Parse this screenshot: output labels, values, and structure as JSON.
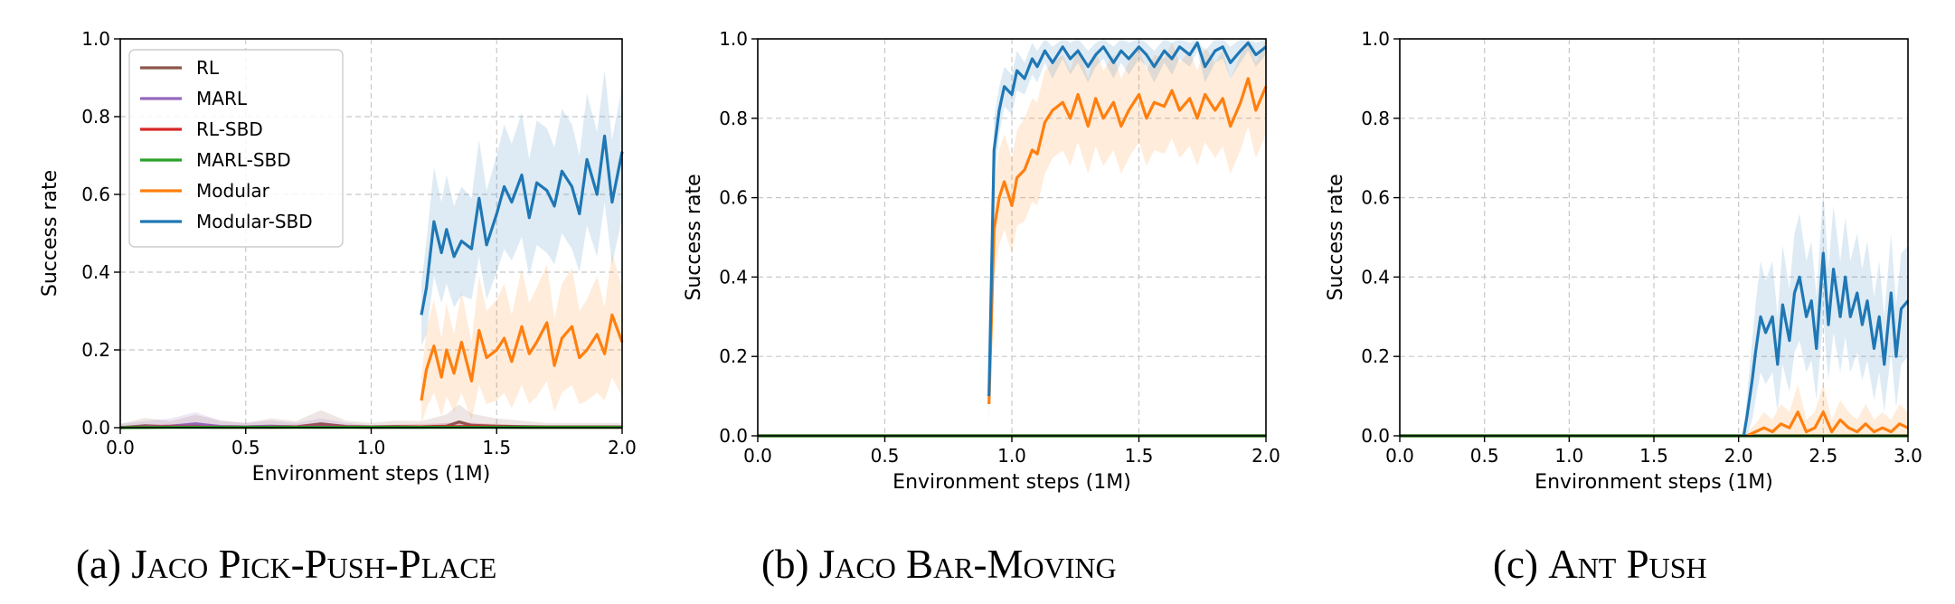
{
  "captions": [
    {
      "prefix": "(a) ",
      "title": "Jaco Pick-Push-Place"
    },
    {
      "prefix": "(b) ",
      "title": "Jaco Bar-Moving"
    },
    {
      "prefix": "(c) ",
      "title": "Ant Push"
    }
  ],
  "colors": {
    "RL": "#8c564b",
    "MARL": "#9467bd",
    "RL-SBD": "#d62728",
    "MARL-SBD": "#2ca02c",
    "Modular": "#ff7f0e",
    "Modular-SBD": "#1f77b4",
    "grid": "#c8c8c8"
  },
  "chart_data": [
    {
      "type": "line",
      "xlabel": "Environment steps (1M)",
      "ylabel": "Success rate",
      "xlim": [
        0,
        2.0
      ],
      "ylim": [
        0,
        1.0
      ],
      "xticks": [
        "0.0",
        "0.5",
        "1.0",
        "1.5",
        "2.0"
      ],
      "yticks": [
        "0.0",
        "0.2",
        "0.4",
        "0.6",
        "0.8",
        "1.0"
      ],
      "grid": true,
      "legend": {
        "position": "upper-left",
        "entries": [
          "RL",
          "MARL",
          "RL-SBD",
          "MARL-SBD",
          "Modular",
          "Modular-SBD"
        ]
      },
      "series": [
        {
          "name": "RL",
          "x": [
            0,
            0.1,
            0.2,
            0.3,
            0.4,
            0.5,
            0.6,
            0.7,
            0.8,
            0.9,
            1.0,
            1.1,
            1.2,
            1.3,
            1.35,
            1.4,
            1.5,
            1.6,
            1.7,
            1.8,
            1.9,
            2.0
          ],
          "y": [
            0,
            0.005,
            0.002,
            0.008,
            0.003,
            0.002,
            0.004,
            0.002,
            0.01,
            0.003,
            0.002,
            0.003,
            0.002,
            0.004,
            0.015,
            0.006,
            0.004,
            0.003,
            0.002,
            0.002,
            0.002,
            0.002
          ],
          "band": [
            0.01,
            0.02,
            0.015,
            0.025,
            0.015,
            0.01,
            0.02,
            0.015,
            0.035,
            0.015,
            0.01,
            0.015,
            0.015,
            0.03,
            0.045,
            0.03,
            0.02,
            0.015,
            0.01,
            0.01,
            0.01,
            0.01
          ]
        },
        {
          "name": "MARL",
          "x": [
            0,
            0.1,
            0.2,
            0.3,
            0.4,
            0.5,
            0.6,
            0.7,
            0.8,
            0.9,
            1.0,
            1.1,
            1.2,
            1.3,
            1.4,
            1.5,
            1.6,
            1.7,
            1.8,
            1.9,
            2.0
          ],
          "y": [
            0,
            0.002,
            0.004,
            0.01,
            0.003,
            0.002,
            0.003,
            0.002,
            0.004,
            0.002,
            0.001,
            0.001,
            0.001,
            0.002,
            0.002,
            0.001,
            0.001,
            0.001,
            0.001,
            0.001,
            0.001
          ],
          "band": [
            0.01,
            0.015,
            0.02,
            0.03,
            0.015,
            0.01,
            0.015,
            0.01,
            0.02,
            0.01,
            0.005,
            0.005,
            0.005,
            0.01,
            0.01,
            0.005,
            0.005,
            0.005,
            0.005,
            0.005,
            0.005
          ]
        },
        {
          "name": "RL-SBD",
          "x": [
            0,
            0.2,
            0.4,
            0.6,
            0.8,
            1.0,
            1.2,
            1.4,
            1.6,
            1.8,
            2.0
          ],
          "y": [
            0,
            0.002,
            0.001,
            0.001,
            0.002,
            0.001,
            0.002,
            0.003,
            0.001,
            0.001,
            0.001
          ],
          "band": [
            0.005,
            0.008,
            0.005,
            0.005,
            0.008,
            0.005,
            0.008,
            0.01,
            0.005,
            0.005,
            0.005
          ]
        },
        {
          "name": "MARL-SBD",
          "x": [
            0,
            0.2,
            0.4,
            0.6,
            0.8,
            1.0,
            1.2,
            1.4,
            1.6,
            1.8,
            2.0
          ],
          "y": [
            0,
            0.001,
            0.001,
            0.001,
            0.001,
            0.001,
            0.001,
            0.001,
            0.001,
            0.001,
            0.001
          ],
          "band": [
            0.004,
            0.004,
            0.004,
            0.004,
            0.004,
            0.004,
            0.004,
            0.004,
            0.004,
            0.004,
            0.004
          ]
        },
        {
          "name": "Modular",
          "x": [
            1.2,
            1.22,
            1.25,
            1.28,
            1.3,
            1.33,
            1.36,
            1.4,
            1.43,
            1.46,
            1.5,
            1.53,
            1.56,
            1.6,
            1.63,
            1.66,
            1.7,
            1.73,
            1.76,
            1.8,
            1.83,
            1.86,
            1.9,
            1.93,
            1.96,
            2.0
          ],
          "y": [
            0.07,
            0.15,
            0.21,
            0.13,
            0.2,
            0.14,
            0.22,
            0.12,
            0.25,
            0.18,
            0.2,
            0.23,
            0.17,
            0.26,
            0.19,
            0.22,
            0.27,
            0.16,
            0.23,
            0.26,
            0.18,
            0.2,
            0.24,
            0.19,
            0.29,
            0.22
          ],
          "band": [
            0.06,
            0.1,
            0.12,
            0.1,
            0.12,
            0.1,
            0.13,
            0.1,
            0.14,
            0.12,
            0.13,
            0.14,
            0.12,
            0.15,
            0.13,
            0.14,
            0.15,
            0.12,
            0.14,
            0.15,
            0.12,
            0.13,
            0.15,
            0.12,
            0.16,
            0.14
          ]
        },
        {
          "name": "Modular-SBD",
          "x": [
            1.2,
            1.22,
            1.25,
            1.28,
            1.3,
            1.33,
            1.36,
            1.4,
            1.43,
            1.46,
            1.5,
            1.53,
            1.56,
            1.6,
            1.63,
            1.66,
            1.7,
            1.73,
            1.76,
            1.8,
            1.83,
            1.86,
            1.9,
            1.93,
            1.96,
            2.0
          ],
          "y": [
            0.29,
            0.36,
            0.53,
            0.45,
            0.51,
            0.44,
            0.48,
            0.46,
            0.59,
            0.47,
            0.55,
            0.62,
            0.58,
            0.65,
            0.54,
            0.63,
            0.61,
            0.57,
            0.66,
            0.62,
            0.55,
            0.69,
            0.6,
            0.75,
            0.58,
            0.71
          ],
          "band": [
            0.08,
            0.12,
            0.14,
            0.13,
            0.14,
            0.13,
            0.14,
            0.13,
            0.15,
            0.14,
            0.15,
            0.16,
            0.15,
            0.16,
            0.15,
            0.16,
            0.16,
            0.15,
            0.16,
            0.16,
            0.15,
            0.17,
            0.16,
            0.17,
            0.16,
            0.17
          ]
        }
      ]
    },
    {
      "type": "line",
      "xlabel": "Environment steps (1M)",
      "ylabel": "Success rate",
      "xlim": [
        0,
        2.0
      ],
      "ylim": [
        0,
        1.0
      ],
      "xticks": [
        "0.0",
        "0.5",
        "1.0",
        "1.5",
        "2.0"
      ],
      "yticks": [
        "0.0",
        "0.2",
        "0.4",
        "0.6",
        "0.8",
        "1.0"
      ],
      "grid": true,
      "series": [
        {
          "name": "RL",
          "x": [
            0,
            2.0
          ],
          "y": [
            0,
            0
          ],
          "band": [
            0.002,
            0.002
          ]
        },
        {
          "name": "MARL",
          "x": [
            0,
            2.0
          ],
          "y": [
            0,
            0
          ],
          "band": [
            0.002,
            0.002
          ]
        },
        {
          "name": "RL-SBD",
          "x": [
            0,
            2.0
          ],
          "y": [
            0,
            0
          ],
          "band": [
            0.002,
            0.002
          ]
        },
        {
          "name": "MARL-SBD",
          "x": [
            0,
            2.0
          ],
          "y": [
            0,
            0
          ],
          "band": [
            0.002,
            0.002
          ]
        },
        {
          "name": "Modular",
          "x": [
            0.91,
            0.93,
            0.95,
            0.97,
            1.0,
            1.02,
            1.05,
            1.08,
            1.1,
            1.13,
            1.16,
            1.2,
            1.23,
            1.26,
            1.3,
            1.33,
            1.36,
            1.4,
            1.43,
            1.46,
            1.5,
            1.53,
            1.56,
            1.6,
            1.63,
            1.66,
            1.7,
            1.73,
            1.76,
            1.8,
            1.83,
            1.86,
            1.9,
            1.93,
            1.96,
            2.0
          ],
          "y": [
            0.08,
            0.52,
            0.6,
            0.64,
            0.58,
            0.65,
            0.67,
            0.72,
            0.71,
            0.79,
            0.82,
            0.84,
            0.8,
            0.86,
            0.78,
            0.85,
            0.8,
            0.84,
            0.78,
            0.82,
            0.86,
            0.8,
            0.84,
            0.83,
            0.87,
            0.82,
            0.85,
            0.8,
            0.86,
            0.82,
            0.85,
            0.78,
            0.84,
            0.9,
            0.82,
            0.88
          ],
          "band": [
            0.05,
            0.12,
            0.12,
            0.12,
            0.12,
            0.12,
            0.13,
            0.13,
            0.13,
            0.13,
            0.12,
            0.12,
            0.12,
            0.12,
            0.12,
            0.12,
            0.12,
            0.12,
            0.12,
            0.12,
            0.12,
            0.12,
            0.12,
            0.12,
            0.12,
            0.12,
            0.12,
            0.12,
            0.12,
            0.12,
            0.12,
            0.12,
            0.12,
            0.12,
            0.12,
            0.12
          ]
        },
        {
          "name": "Modular-SBD",
          "x": [
            0.91,
            0.93,
            0.95,
            0.97,
            1.0,
            1.02,
            1.05,
            1.08,
            1.1,
            1.13,
            1.16,
            1.2,
            1.23,
            1.26,
            1.3,
            1.33,
            1.36,
            1.4,
            1.43,
            1.46,
            1.5,
            1.53,
            1.56,
            1.6,
            1.63,
            1.66,
            1.7,
            1.73,
            1.76,
            1.8,
            1.83,
            1.86,
            1.9,
            1.93,
            1.96,
            2.0
          ],
          "y": [
            0.1,
            0.72,
            0.82,
            0.88,
            0.86,
            0.92,
            0.9,
            0.95,
            0.93,
            0.97,
            0.94,
            0.98,
            0.95,
            0.97,
            0.93,
            0.96,
            0.98,
            0.94,
            0.97,
            0.95,
            0.98,
            0.96,
            0.93,
            0.97,
            0.95,
            0.98,
            0.96,
            0.99,
            0.93,
            0.97,
            0.98,
            0.94,
            0.97,
            0.99,
            0.96,
            0.98
          ],
          "band": [
            0.05,
            0.08,
            0.06,
            0.05,
            0.05,
            0.05,
            0.04,
            0.04,
            0.04,
            0.03,
            0.04,
            0.03,
            0.04,
            0.03,
            0.04,
            0.03,
            0.03,
            0.04,
            0.03,
            0.04,
            0.03,
            0.03,
            0.04,
            0.03,
            0.04,
            0.03,
            0.03,
            0.02,
            0.04,
            0.03,
            0.03,
            0.04,
            0.03,
            0.02,
            0.03,
            0.02
          ]
        }
      ]
    },
    {
      "type": "line",
      "xlabel": "Environment steps (1M)",
      "ylabel": "Success rate",
      "xlim": [
        0,
        3.0
      ],
      "ylim": [
        0,
        1.0
      ],
      "xticks": [
        "0.0",
        "0.5",
        "1.0",
        "1.5",
        "2.0",
        "2.5",
        "3.0"
      ],
      "yticks": [
        "0.0",
        "0.2",
        "0.4",
        "0.6",
        "0.8",
        "1.0"
      ],
      "grid": true,
      "series": [
        {
          "name": "RL",
          "x": [
            0,
            3.0
          ],
          "y": [
            0,
            0
          ],
          "band": [
            0.002,
            0.002
          ]
        },
        {
          "name": "MARL",
          "x": [
            0,
            3.0
          ],
          "y": [
            0,
            0
          ],
          "band": [
            0.002,
            0.002
          ]
        },
        {
          "name": "RL-SBD",
          "x": [
            0,
            3.0
          ],
          "y": [
            0,
            0
          ],
          "band": [
            0.002,
            0.002
          ]
        },
        {
          "name": "MARL-SBD",
          "x": [
            0,
            3.0
          ],
          "y": [
            0,
            0
          ],
          "band": [
            0.002,
            0.002
          ]
        },
        {
          "name": "Modular",
          "x": [
            2.05,
            2.1,
            2.15,
            2.2,
            2.25,
            2.3,
            2.35,
            2.4,
            2.45,
            2.5,
            2.55,
            2.6,
            2.65,
            2.7,
            2.75,
            2.8,
            2.85,
            2.9,
            2.95,
            3.0
          ],
          "y": [
            0,
            0.01,
            0.02,
            0.01,
            0.03,
            0.02,
            0.06,
            0.01,
            0.02,
            0.06,
            0.01,
            0.04,
            0.02,
            0.01,
            0.03,
            0.01,
            0.02,
            0.01,
            0.03,
            0.02
          ],
          "band": [
            0.01,
            0.02,
            0.04,
            0.03,
            0.05,
            0.04,
            0.07,
            0.03,
            0.04,
            0.07,
            0.03,
            0.05,
            0.04,
            0.03,
            0.05,
            0.03,
            0.04,
            0.03,
            0.05,
            0.04
          ]
        },
        {
          "name": "Modular-SBD",
          "x": [
            2.03,
            2.05,
            2.08,
            2.1,
            2.13,
            2.16,
            2.2,
            2.23,
            2.26,
            2.3,
            2.33,
            2.36,
            2.4,
            2.43,
            2.46,
            2.5,
            2.53,
            2.56,
            2.6,
            2.63,
            2.66,
            2.7,
            2.73,
            2.76,
            2.8,
            2.83,
            2.86,
            2.9,
            2.93,
            2.96,
            3.0
          ],
          "y": [
            0,
            0.05,
            0.14,
            0.21,
            0.3,
            0.26,
            0.3,
            0.18,
            0.33,
            0.24,
            0.36,
            0.4,
            0.3,
            0.34,
            0.22,
            0.46,
            0.28,
            0.42,
            0.3,
            0.4,
            0.3,
            0.36,
            0.28,
            0.34,
            0.22,
            0.3,
            0.18,
            0.36,
            0.2,
            0.32,
            0.34
          ],
          "band": [
            0.01,
            0.05,
            0.1,
            0.12,
            0.14,
            0.13,
            0.14,
            0.12,
            0.15,
            0.13,
            0.15,
            0.16,
            0.14,
            0.15,
            0.13,
            0.16,
            0.14,
            0.16,
            0.14,
            0.15,
            0.14,
            0.15,
            0.14,
            0.15,
            0.13,
            0.14,
            0.12,
            0.15,
            0.13,
            0.14,
            0.14
          ]
        }
      ]
    }
  ]
}
